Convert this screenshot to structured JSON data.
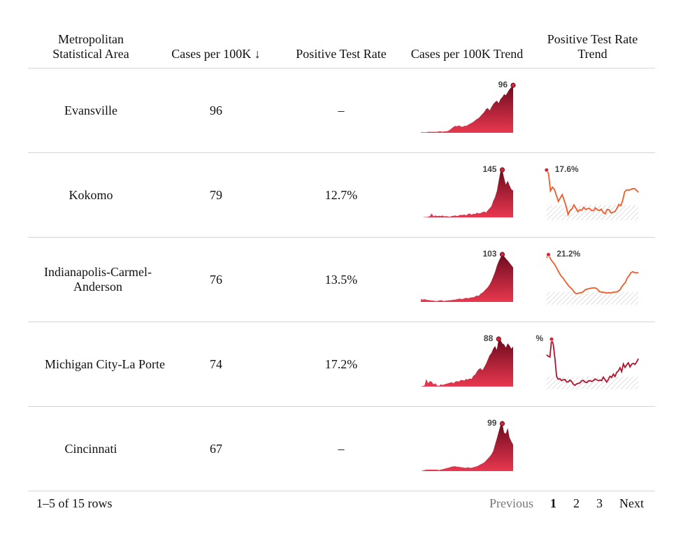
{
  "table": {
    "columns": [
      "Metropolitan\nStatistical Area",
      "Cases per 100K ↓",
      "Positive Test Rate",
      "Cases per 100K Trend",
      "Positive Test Rate\nTrend"
    ],
    "rows": [
      {
        "area": "Evansville",
        "cases": "96",
        "rate": "–",
        "cases_trend": {
          "peak_label": "96",
          "values": [
            1,
            1,
            1,
            1,
            2,
            2,
            2,
            2,
            2,
            2,
            3,
            3,
            2,
            3,
            3,
            4,
            6,
            9,
            12,
            14,
            13,
            15,
            13,
            12,
            14,
            14,
            16,
            18,
            20,
            22,
            25,
            28,
            30,
            34,
            38,
            42,
            48,
            50,
            45,
            52,
            58,
            62,
            65,
            60,
            68,
            72,
            78,
            76,
            82,
            88,
            92,
            96
          ]
        },
        "rate_trend": null
      },
      {
        "area": "Kokomo",
        "cases": "79",
        "rate": "12.7%",
        "cases_trend": {
          "peak_label": "145",
          "values": [
            0,
            0,
            1,
            1,
            2,
            4,
            12,
            3,
            6,
            4,
            5,
            4,
            6,
            3,
            4,
            3,
            2,
            4,
            5,
            6,
            4,
            6,
            8,
            7,
            9,
            6,
            10,
            12,
            8,
            11,
            10,
            14,
            12,
            13,
            16,
            18,
            15,
            22,
            28,
            34,
            50,
            62,
            80,
            110,
            140,
            145,
            120,
            100,
            112,
            98,
            86,
            82
          ]
        },
        "rate_trend": {
          "peak_label": "17.6%",
          "values": [
            17.6,
            16.2,
            9.8,
            11.2,
            10.4,
            8.2,
            5.9,
            7.2,
            8.4,
            6.3,
            4.1,
            1.0,
            2.6,
            3.1,
            4.6,
            3.4,
            2.1,
            2.8,
            2.6,
            3.7,
            2.9,
            3.2,
            3.3,
            2.5,
            2.4,
            3.5,
            2.8,
            2.5,
            3.0,
            1.8,
            1.3,
            2.9,
            2.8,
            1.6,
            1.9,
            2.1,
            3.3,
            4.8,
            4.3,
            6.3,
            9.5,
            10.2,
            10.1,
            10.3,
            10.6,
            10.7,
            10.1,
            9.3
          ],
          "ref_band": [
            0,
            4.5
          ]
        }
      },
      {
        "area": "Indianapolis-Carmel-Anderson",
        "cases": "76",
        "rate": "13.5%",
        "cases_trend": {
          "peak_label": "103",
          "values": [
            6,
            5,
            6,
            5,
            4,
            4,
            3,
            3,
            2,
            2,
            3,
            4,
            3,
            2,
            3,
            3,
            4,
            4,
            5,
            5,
            6,
            7,
            7,
            6,
            8,
            9,
            8,
            9,
            10,
            10,
            12,
            14,
            13,
            18,
            20,
            24,
            28,
            32,
            38,
            45,
            55,
            65,
            78,
            88,
            96,
            103,
            99,
            94,
            90,
            85,
            80,
            75
          ]
        },
        "rate_trend": {
          "peak_label": "21.2%",
          "values": [
            19.8,
            21.2,
            19.5,
            18.2,
            17.2,
            15.9,
            14.3,
            12.8,
            11.5,
            10.6,
            9.4,
            8.3,
            7.2,
            6.4,
            5.6,
            4.4,
            3.7,
            3.8,
            4.0,
            4.1,
            4.6,
            5.4,
            5.7,
            5.9,
            6.1,
            6.2,
            6.3,
            6.1,
            5.4,
            4.5,
            4.4,
            4.3,
            4.1,
            4.0,
            4.1,
            4.0,
            4.2,
            4.4,
            4.4,
            4.8,
            5.4,
            6.8,
            7.9,
            8.8,
            10.8,
            11.8,
            13.1,
            13.5,
            13.1,
            13.0,
            13.2
          ]
        },
        "rate_band": [
          0,
          4.5
        ]
      },
      {
        "area": "Michigan City-La Porte",
        "cases": "74",
        "rate": "17.2%",
        "cases_trend": {
          "peak_label": "88",
          "values": [
            0,
            1,
            2,
            14,
            6,
            10,
            9,
            4,
            6,
            2,
            1,
            4,
            3,
            4,
            5,
            6,
            7,
            8,
            6,
            9,
            10,
            9,
            12,
            12,
            11,
            14,
            13,
            15,
            14,
            20,
            22,
            28,
            32,
            34,
            30,
            36,
            42,
            50,
            58,
            62,
            70,
            75,
            68,
            88,
            86,
            80,
            78,
            72,
            80,
            76,
            70,
            74
          ]
        },
        "rate_trend": {
          "peak_label": "%",
          "values": [
            11.5,
            11.0,
            10.7,
            17.2,
            15.3,
            10.1,
            3.6,
            2.6,
            2.8,
            2.1,
            2.4,
            2.5,
            1.6,
            1.7,
            2.3,
            1.8,
            0.8,
            0.4,
            0.9,
            1.1,
            1.3,
            2.0,
            2.2,
            1.6,
            1.4,
            2.0,
            2.1,
            1.8,
            2.1,
            2.7,
            2.4,
            2.1,
            2.3,
            2.1,
            3.4,
            2.5,
            1.6,
            2.5,
            3.7,
            3.3,
            4.5,
            3.6,
            5.1,
            5.6,
            6.8,
            5.4,
            8.2,
            6.9,
            7.8,
            8.6,
            7.1,
            8.1,
            8.4,
            8.0,
            8.9,
            10.1
          ]
        },
        "rate_band": [
          0,
          3.5
        ]
      },
      {
        "area": "Cincinnati",
        "cases": "67",
        "rate": "–",
        "cases_trend": {
          "peak_label": "99",
          "values": [
            0,
            1,
            2,
            3,
            3,
            3,
            3,
            3,
            3,
            3,
            2,
            3,
            4,
            5,
            6,
            7,
            8,
            9,
            10,
            10,
            9,
            9,
            8,
            8,
            7,
            7,
            8,
            7,
            7,
            8,
            9,
            10,
            12,
            14,
            16,
            18,
            22,
            26,
            30,
            35,
            42,
            55,
            68,
            82,
            95,
            99,
            80,
            78,
            90,
            70,
            62,
            55
          ]
        },
        "rate_trend": null
      }
    ]
  },
  "colors": {
    "cases_fill_top": "#6e0a1e",
    "cases_fill_bottom": "#e8384f",
    "rate_line_a": "#f05a28",
    "rate_line_b": "#b0112d",
    "peak_dot": "#d6283f",
    "hatch": "#bdbdbd"
  },
  "footer": {
    "row_count": "1–5 of 15 rows",
    "previous": "Previous",
    "pages": [
      "1",
      "2",
      "3"
    ],
    "active_page": "1",
    "next": "Next"
  }
}
